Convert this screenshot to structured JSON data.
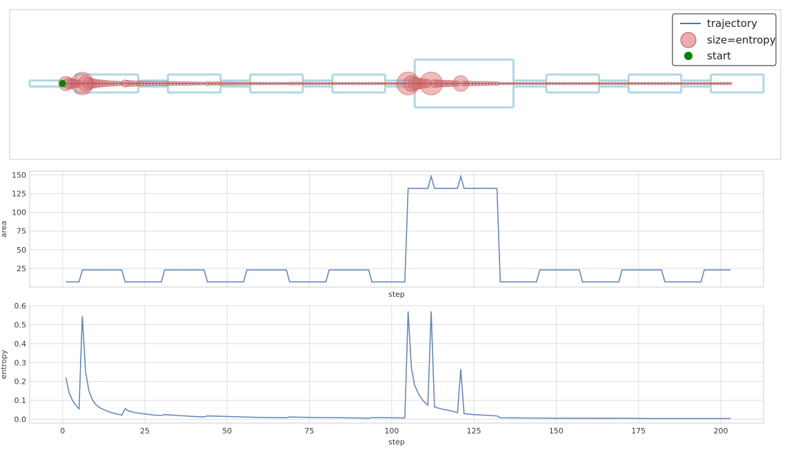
{
  "chart_data": [
    {
      "type": "scatter",
      "panel": "trajectory",
      "legend": {
        "placement": "top-right",
        "entries": [
          "trajectory",
          "size=entropy",
          "start"
        ]
      },
      "grid": false,
      "channel_x": [
        -10,
        4,
        23,
        32,
        48,
        57,
        73,
        82,
        98,
        107,
        137,
        147,
        163,
        172,
        188,
        197,
        213
      ],
      "channel_half_width": [
        1,
        3,
        1,
        3,
        1,
        3,
        1,
        3,
        1,
        8,
        1,
        3,
        1,
        3,
        1,
        3
      ],
      "trajectory_y": 0,
      "start": {
        "x": 0,
        "y": 0
      },
      "colors": {
        "channel": "#add8e6",
        "junction": "#ddb24c",
        "trajectory": "#4c72b0",
        "points": "#d9686b",
        "start": "#008000"
      }
    },
    {
      "type": "line",
      "panel": "area",
      "xlabel": "step",
      "ylabel": "area",
      "xlim": [
        -10,
        213
      ],
      "ylim": [
        0,
        155
      ],
      "yticks": [
        25,
        50,
        75,
        100,
        125,
        150
      ],
      "grid": true,
      "series": [
        {
          "x": [
            1,
            5,
            6,
            18,
            19,
            30,
            31,
            43,
            44,
            55,
            56,
            68,
            69,
            80,
            81,
            93,
            94,
            104,
            105,
            111,
            112,
            113,
            120,
            121,
            122,
            132,
            133,
            144,
            145,
            157,
            158,
            169,
            170,
            182,
            183,
            194,
            195,
            203
          ],
          "y": [
            7,
            7,
            23,
            23,
            7,
            7,
            23,
            23,
            7,
            7,
            23,
            23,
            7,
            7,
            23,
            23,
            7,
            7,
            132,
            132,
            148,
            132,
            132,
            148,
            132,
            132,
            7,
            7,
            23,
            23,
            7,
            7,
            23,
            23,
            7,
            7,
            23,
            23
          ]
        }
      ],
      "color": "#4c72b0"
    },
    {
      "type": "line",
      "panel": "entropy",
      "xlabel": "step",
      "ylabel": "entropy",
      "xlim": [
        -10,
        213
      ],
      "ylim": [
        -0.02,
        0.6
      ],
      "xticks": [
        0,
        25,
        50,
        75,
        100,
        125,
        150,
        175,
        200
      ],
      "yticks": [
        0.0,
        0.1,
        0.2,
        0.3,
        0.4,
        0.5,
        0.6
      ],
      "grid": true,
      "series": [
        {
          "x": [
            1,
            2,
            3,
            4,
            5,
            6,
            7,
            8,
            9,
            10,
            11,
            12,
            14,
            16,
            18,
            19,
            20,
            22,
            25,
            28,
            30,
            31,
            35,
            40,
            43,
            44,
            50,
            55,
            60,
            68,
            69,
            75,
            80,
            90,
            93,
            94,
            100,
            104,
            105,
            106,
            107,
            108,
            109,
            110,
            111,
            112,
            113,
            115,
            118,
            120,
            121,
            122,
            125,
            130,
            132,
            133,
            140,
            150,
            160,
            170,
            180,
            190,
            200,
            203
          ],
          "y": [
            0.22,
            0.14,
            0.1,
            0.075,
            0.055,
            0.545,
            0.25,
            0.15,
            0.105,
            0.08,
            0.065,
            0.055,
            0.04,
            0.03,
            0.022,
            0.056,
            0.045,
            0.035,
            0.028,
            0.022,
            0.02,
            0.025,
            0.02,
            0.015,
            0.012,
            0.018,
            0.015,
            0.012,
            0.01,
            0.008,
            0.012,
            0.01,
            0.009,
            0.007,
            0.006,
            0.009,
            0.008,
            0.007,
            0.57,
            0.27,
            0.18,
            0.14,
            0.11,
            0.09,
            0.075,
            0.57,
            0.065,
            0.055,
            0.045,
            0.035,
            0.265,
            0.03,
            0.025,
            0.02,
            0.018,
            0.008,
            0.007,
            0.006,
            0.005,
            0.005,
            0.004,
            0.004,
            0.004,
            0.004
          ]
        }
      ],
      "color": "#4c72b0"
    }
  ]
}
